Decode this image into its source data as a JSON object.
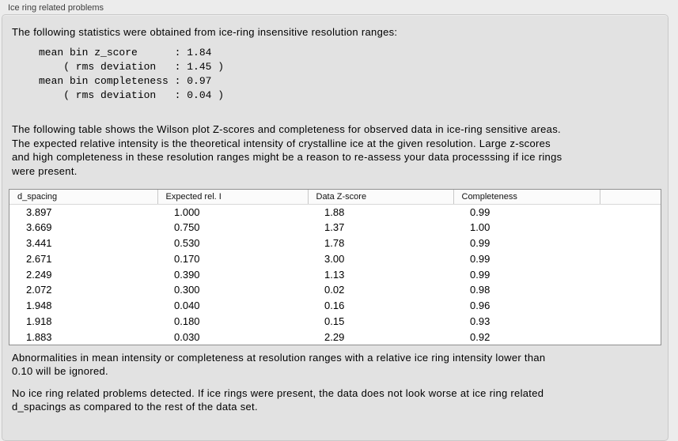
{
  "panel": {
    "title": "Ice ring related problems",
    "intro": "The following statistics were obtained from ice-ring insensitive resolution ranges:",
    "stats_block": "mean bin z_score      : 1.84\n    ( rms deviation   : 1.45 )\nmean bin completeness : 0.97\n    ( rms deviation   : 0.04 )",
    "table_description": "The following table shows the Wilson plot Z-scores and completeness for observed data in ice-ring sensitive areas.\nThe expected relative intensity is the theoretical intensity of crystalline ice at the given resolution. Large z-scores\nand high completeness in these resolution ranges might be a reason to re-assess your data processsing if ice rings\nwere present.",
    "note": "Abnormalities in mean intensity or completeness at resolution ranges with a relative ice ring intensity lower than\n0.10 will be ignored.",
    "conclusion": "No ice ring related problems detected. If ice rings were present, the data does not look worse at ice ring related\nd_spacings as compared to the rest of the data set."
  },
  "table": {
    "columns": [
      "d_spacing",
      "Expected rel. I",
      "Data Z-score",
      "Completeness",
      ""
    ],
    "rows": [
      [
        "3.897",
        "1.000",
        "1.88",
        "0.99"
      ],
      [
        "3.669",
        "0.750",
        "1.37",
        "1.00"
      ],
      [
        "3.441",
        "0.530",
        "1.78",
        "0.99"
      ],
      [
        "2.671",
        "0.170",
        "3.00",
        "0.99"
      ],
      [
        "2.249",
        "0.390",
        "1.13",
        "0.99"
      ],
      [
        "2.072",
        "0.300",
        "0.02",
        "0.98"
      ],
      [
        "1.948",
        "0.040",
        "0.16",
        "0.96"
      ],
      [
        "1.918",
        "0.180",
        "0.15",
        "0.93"
      ],
      [
        "1.883",
        "0.030",
        "2.29",
        "0.92"
      ]
    ]
  },
  "colors": {
    "window_bg": "#ececec",
    "groupbox_bg": "#e2e2e2",
    "groupbox_border": "#c9c9c9",
    "table_bg": "#ffffff",
    "table_border": "#8f8f8f",
    "header_separator": "#c8c8c8",
    "text": "#000000"
  }
}
